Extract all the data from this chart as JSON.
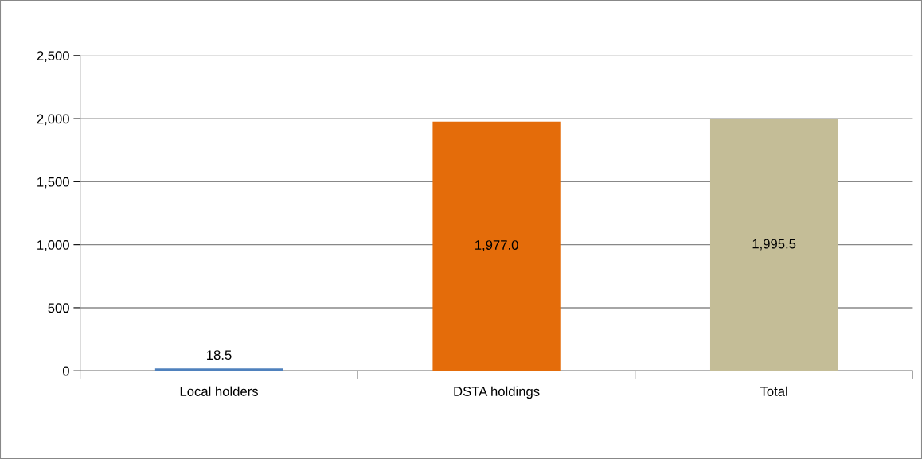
{
  "chart_data": {
    "type": "bar",
    "categories": [
      "Local holders",
      "DSTA holdings",
      "Total"
    ],
    "values": [
      18.5,
      1977.0,
      1995.5
    ],
    "colors": [
      "#4f81bd",
      "#e46c0a",
      "#c4bd97"
    ],
    "value_labels": [
      "18.5",
      "1,977.0",
      "1,995.5"
    ],
    "ylim": [
      0,
      2500
    ],
    "yticks": [
      {
        "value": 0,
        "label": "0"
      },
      {
        "value": 500,
        "label": "500"
      },
      {
        "value": 1000,
        "label": "1,000"
      },
      {
        "value": 1500,
        "label": "1,500"
      },
      {
        "value": 2000,
        "label": "2,000"
      },
      {
        "value": 2500,
        "label": "2,500"
      }
    ],
    "grid": "y",
    "legend": false
  }
}
